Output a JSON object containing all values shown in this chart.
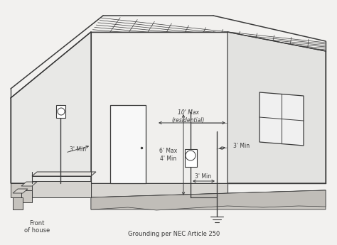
{
  "bg_color": "#f2f1ef",
  "line_color": "#3a3a3a",
  "text_color": "#3a3a3a",
  "labels": {
    "front_of_house": "Front\nof house",
    "grounding": "Grounding per NEC Article 250",
    "ten_max": "10' Max\n(residential)",
    "six_max": "6' Max\n4' Min",
    "three_min_left": "3' Min",
    "three_min_right": "3' Min",
    "three_min_meter": "3' Min"
  },
  "fig_width": 4.74,
  "fig_height": 3.45,
  "dpi": 100
}
